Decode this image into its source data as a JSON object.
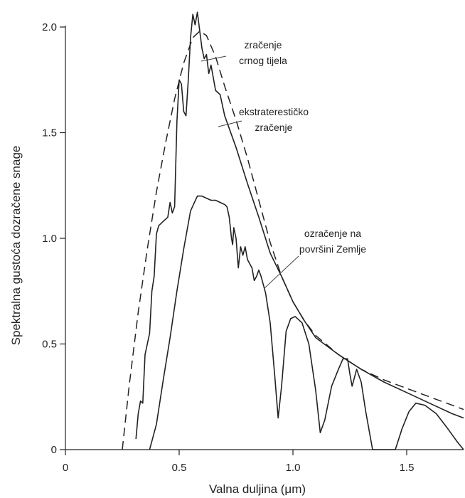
{
  "chart_data": {
    "type": "line",
    "title": "",
    "xlabel": "Valna duljina (μm)",
    "ylabel": "Spektralna gustoća dozračene snage",
    "xlim": [
      0,
      1.75
    ],
    "ylim": [
      0,
      2.0
    ],
    "xticks": [
      0,
      0.5,
      1.0,
      1.5
    ],
    "xtick_labels": [
      "0",
      "0.5",
      "1.0",
      "1.5"
    ],
    "yticks": [
      0,
      0.5,
      1.0,
      1.5,
      2.0
    ],
    "ytick_labels": [
      "0",
      "0.5",
      "1.0",
      "1.5",
      "2.0"
    ],
    "grid": false,
    "legend": "none",
    "series": [
      {
        "key": "blackbody",
        "style": "dashed",
        "color": "#222222",
        "points": [
          [
            0.25,
            0.0
          ],
          [
            0.28,
            0.3
          ],
          [
            0.32,
            0.65
          ],
          [
            0.36,
            0.95
          ],
          [
            0.4,
            1.22
          ],
          [
            0.44,
            1.45
          ],
          [
            0.48,
            1.66
          ],
          [
            0.52,
            1.83
          ],
          [
            0.56,
            1.95
          ],
          [
            0.59,
            1.98
          ],
          [
            0.62,
            1.96
          ],
          [
            0.66,
            1.86
          ],
          [
            0.7,
            1.72
          ],
          [
            0.75,
            1.56
          ],
          [
            0.8,
            1.38
          ],
          [
            0.85,
            1.18
          ],
          [
            0.9,
            0.98
          ],
          [
            0.95,
            0.82
          ],
          [
            1.0,
            0.7
          ],
          [
            1.05,
            0.61
          ],
          [
            1.1,
            0.54
          ],
          [
            1.2,
            0.45
          ],
          [
            1.3,
            0.38
          ],
          [
            1.4,
            0.33
          ],
          [
            1.5,
            0.29
          ],
          [
            1.6,
            0.25
          ],
          [
            1.7,
            0.21
          ],
          [
            1.75,
            0.19
          ]
        ]
      },
      {
        "key": "extraterrestrial",
        "style": "solid",
        "color": "#222222",
        "points": [
          [
            0.31,
            0.05
          ],
          [
            0.32,
            0.17
          ],
          [
            0.33,
            0.23
          ],
          [
            0.34,
            0.22
          ],
          [
            0.35,
            0.45
          ],
          [
            0.36,
            0.5
          ],
          [
            0.37,
            0.55
          ],
          [
            0.38,
            0.75
          ],
          [
            0.39,
            0.82
          ],
          [
            0.4,
            1.02
          ],
          [
            0.41,
            1.06
          ],
          [
            0.43,
            1.08
          ],
          [
            0.45,
            1.1
          ],
          [
            0.46,
            1.17
          ],
          [
            0.47,
            1.12
          ],
          [
            0.48,
            1.15
          ],
          [
            0.49,
            1.55
          ],
          [
            0.5,
            1.75
          ],
          [
            0.51,
            1.73
          ],
          [
            0.52,
            1.6
          ],
          [
            0.53,
            1.58
          ],
          [
            0.54,
            1.75
          ],
          [
            0.55,
            1.95
          ],
          [
            0.56,
            2.06
          ],
          [
            0.57,
            2.01
          ],
          [
            0.58,
            2.07
          ],
          [
            0.6,
            1.9
          ],
          [
            0.61,
            1.85
          ],
          [
            0.62,
            1.87
          ],
          [
            0.63,
            1.78
          ],
          [
            0.64,
            1.82
          ],
          [
            0.66,
            1.7
          ],
          [
            0.68,
            1.68
          ],
          [
            0.7,
            1.58
          ],
          [
            0.75,
            1.43
          ],
          [
            0.8,
            1.26
          ],
          [
            0.85,
            1.1
          ],
          [
            0.9,
            0.93
          ],
          [
            0.95,
            0.82
          ],
          [
            1.0,
            0.7
          ],
          [
            1.05,
            0.61
          ],
          [
            1.1,
            0.53
          ],
          [
            1.2,
            0.45
          ],
          [
            1.3,
            0.38
          ],
          [
            1.4,
            0.32
          ],
          [
            1.5,
            0.27
          ],
          [
            1.6,
            0.22
          ],
          [
            1.7,
            0.17
          ],
          [
            1.75,
            0.15
          ]
        ]
      },
      {
        "key": "surface",
        "style": "solid",
        "color": "#222222",
        "points": [
          [
            0.37,
            0.0
          ],
          [
            0.4,
            0.12
          ],
          [
            0.43,
            0.33
          ],
          [
            0.46,
            0.53
          ],
          [
            0.49,
            0.75
          ],
          [
            0.52,
            0.95
          ],
          [
            0.55,
            1.13
          ],
          [
            0.58,
            1.2
          ],
          [
            0.6,
            1.2
          ],
          [
            0.62,
            1.19
          ],
          [
            0.64,
            1.18
          ],
          [
            0.66,
            1.18
          ],
          [
            0.68,
            1.17
          ],
          [
            0.7,
            1.16
          ],
          [
            0.71,
            1.15
          ],
          [
            0.72,
            1.1
          ],
          [
            0.73,
            1.0
          ],
          [
            0.735,
            0.97
          ],
          [
            0.74,
            1.05
          ],
          [
            0.75,
            1.0
          ],
          [
            0.76,
            0.86
          ],
          [
            0.77,
            0.96
          ],
          [
            0.78,
            0.92
          ],
          [
            0.79,
            0.96
          ],
          [
            0.8,
            0.9
          ],
          [
            0.82,
            0.86
          ],
          [
            0.83,
            0.8
          ],
          [
            0.84,
            0.82
          ],
          [
            0.85,
            0.85
          ],
          [
            0.86,
            0.82
          ],
          [
            0.87,
            0.78
          ],
          [
            0.88,
            0.74
          ],
          [
            0.9,
            0.6
          ],
          [
            0.92,
            0.35
          ],
          [
            0.935,
            0.15
          ],
          [
            0.95,
            0.3
          ],
          [
            0.97,
            0.56
          ],
          [
            0.99,
            0.62
          ],
          [
            1.01,
            0.63
          ],
          [
            1.04,
            0.6
          ],
          [
            1.07,
            0.5
          ],
          [
            1.1,
            0.28
          ],
          [
            1.12,
            0.08
          ],
          [
            1.14,
            0.14
          ],
          [
            1.17,
            0.3
          ],
          [
            1.2,
            0.38
          ],
          [
            1.22,
            0.43
          ],
          [
            1.24,
            0.43
          ],
          [
            1.25,
            0.36
          ],
          [
            1.26,
            0.3
          ],
          [
            1.28,
            0.38
          ],
          [
            1.3,
            0.32
          ],
          [
            1.32,
            0.18
          ],
          [
            1.35,
            0.0
          ],
          [
            1.45,
            0.0
          ],
          [
            1.48,
            0.1
          ],
          [
            1.51,
            0.18
          ],
          [
            1.54,
            0.22
          ],
          [
            1.58,
            0.21
          ],
          [
            1.63,
            0.17
          ],
          [
            1.68,
            0.1
          ],
          [
            1.72,
            0.04
          ],
          [
            1.75,
            0.0
          ]
        ]
      }
    ],
    "annotations": [
      {
        "key": "blackbody",
        "lines": [
          "zračenje",
          "crnog tijela"
        ]
      },
      {
        "key": "extraterrestrial",
        "lines": [
          "ekstraterestičko",
          "zračenje"
        ]
      },
      {
        "key": "surface",
        "lines": [
          "ozračenje na",
          "površini Zemlje"
        ]
      }
    ]
  }
}
